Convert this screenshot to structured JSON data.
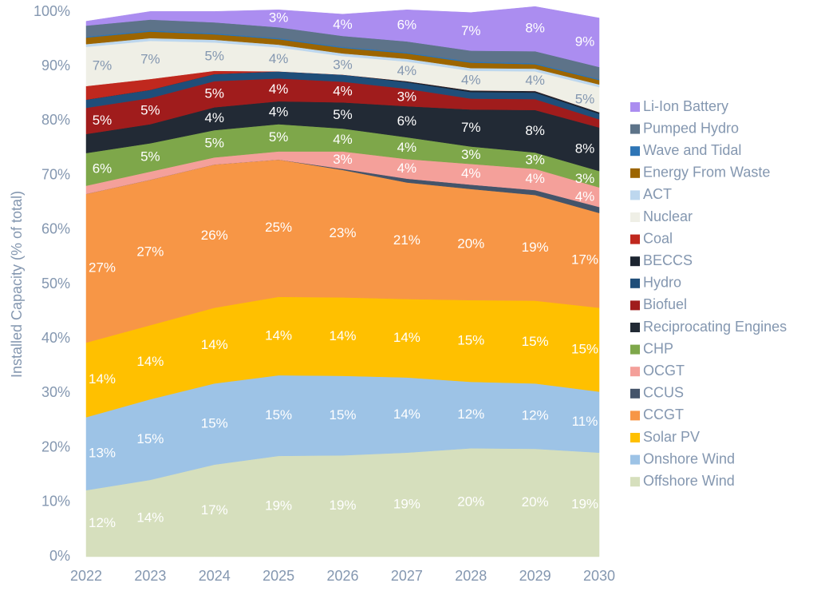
{
  "chart_data": {
    "type": "stacked-area",
    "y_label": "Installed Capacity (% of total)",
    "categories": [
      "2022",
      "2023",
      "2024",
      "2025",
      "2026",
      "2027",
      "2028",
      "2029",
      "2030"
    ],
    "ylim": [
      0,
      100
    ],
    "yticks": [
      {
        "value": 0,
        "label": "0%"
      },
      {
        "value": 10,
        "label": "10%"
      },
      {
        "value": 20,
        "label": "20%"
      },
      {
        "value": 30,
        "label": "30%"
      },
      {
        "value": 40,
        "label": "40%"
      },
      {
        "value": 50,
        "label": "50%"
      },
      {
        "value": 60,
        "label": "60%"
      },
      {
        "value": 70,
        "label": "70%"
      },
      {
        "value": 80,
        "label": "80%"
      },
      {
        "value": 90,
        "label": "90%"
      },
      {
        "value": 100,
        "label": "100%"
      }
    ],
    "legend": "right",
    "series": [
      {
        "name": "Offshore Wind",
        "color": "#d6dfbd",
        "values": [
          12.2,
          14.1,
          16.9,
          18.5,
          18.6,
          19.1,
          19.9,
          19.8,
          19.1
        ],
        "value_labels": [
          "12%",
          "14%",
          "17%",
          "19%",
          "19%",
          "19%",
          "20%",
          "20%",
          "19%"
        ]
      },
      {
        "name": "Onshore Wind",
        "color": "#9dc3e6",
        "values": [
          13.4,
          14.8,
          14.9,
          14.8,
          14.6,
          13.8,
          12.2,
          12.0,
          11.2
        ],
        "value_labels": [
          "13%",
          "15%",
          "15%",
          "15%",
          "15%",
          "14%",
          "12%",
          "12%",
          "11%"
        ]
      },
      {
        "name": "Solar PV",
        "color": "#ffc000",
        "values": [
          13.7,
          13.6,
          13.9,
          14.4,
          14.4,
          14.4,
          15.0,
          15.2,
          15.4
        ],
        "value_labels": [
          "14%",
          "14%",
          "14%",
          "14%",
          "14%",
          "14%",
          "15%",
          "15%",
          "15%"
        ]
      },
      {
        "name": "CCGT",
        "color": "#f79646",
        "values": [
          27.3,
          26.7,
          26.3,
          25.2,
          23.4,
          21.4,
          20.4,
          19.4,
          17.4
        ],
        "value_labels": [
          "27%",
          "27%",
          "26%",
          "25%",
          "23%",
          "21%",
          "20%",
          "19%",
          "17%"
        ]
      },
      {
        "name": "CCUS",
        "color": "#44546a",
        "values": [
          0,
          0,
          0,
          0,
          0.2,
          0.7,
          0.8,
          0.9,
          1.1
        ]
      },
      {
        "name": "OCGT",
        "color": "#f4a09a",
        "values": [
          1.5,
          1.5,
          1.3,
          1.5,
          3.2,
          3.6,
          3.8,
          3.9,
          3.6
        ],
        "value_labels": [
          null,
          null,
          null,
          null,
          "3%",
          "4%",
          "4%",
          "4%",
          "4%"
        ]
      },
      {
        "name": "CHP",
        "color": "#7ea74a",
        "values": [
          6.0,
          5.2,
          5.0,
          5.0,
          4.2,
          4.0,
          3.2,
          3.0,
          3.0
        ],
        "value_labels": [
          "6%",
          "5%",
          "5%",
          "5%",
          "4%",
          "4%",
          "3%",
          "3%",
          "3%"
        ]
      },
      {
        "name": "Reciprocating Engines",
        "color": "#222a35",
        "values": [
          3.5,
          3.5,
          4.2,
          4.2,
          4.8,
          5.7,
          6.8,
          7.8,
          8.0
        ],
        "value_labels": [
          null,
          null,
          "4%",
          "4%",
          "5%",
          "6%",
          "7%",
          "8%",
          "8%"
        ]
      },
      {
        "name": "Biofuel",
        "color": "#a01c1c",
        "values": [
          4.8,
          4.8,
          4.8,
          4.2,
          3.8,
          3.2,
          2.0,
          2.0,
          1.5
        ],
        "value_labels": [
          "5%",
          "5%",
          "5%",
          "4%",
          "4%",
          "3%",
          null,
          null,
          null
        ]
      },
      {
        "name": "Hydro",
        "color": "#1f4e79",
        "values": [
          1.5,
          1.5,
          1.3,
          1.3,
          1.3,
          1.2,
          1.2,
          1.2,
          1.0
        ]
      },
      {
        "name": "BECCS",
        "color": "#1c2430",
        "values": [
          0,
          0,
          0,
          0,
          0,
          0.2,
          0.3,
          0.3,
          0.3
        ]
      },
      {
        "name": "Coal",
        "color": "#c0281e",
        "values": [
          2.5,
          2.0,
          0.6,
          0,
          0,
          0,
          0,
          0,
          0
        ]
      },
      {
        "name": "Nuclear",
        "color": "#efefe6",
        "values": [
          7.2,
          7.0,
          5.2,
          4.4,
          3.4,
          3.6,
          3.6,
          3.6,
          4.6
        ],
        "value_labels": [
          "7%",
          "7%",
          "5%",
          "4%",
          "3%",
          "4%",
          "4%",
          "4%",
          "5%"
        ]
      },
      {
        "name": "ACT",
        "color": "#bdd7ee",
        "values": [
          0.5,
          0.5,
          0.5,
          0.5,
          0.5,
          0.5,
          0.5,
          0.5,
          0.5
        ]
      },
      {
        "name": "Energy From Waste",
        "color": "#9c6500",
        "values": [
          1.2,
          1.2,
          1.0,
          1.0,
          1.0,
          1.0,
          1.0,
          0.8,
          0.8
        ]
      },
      {
        "name": "Wave and Tidal",
        "color": "#2e75b6",
        "values": [
          0.2,
          0.2,
          0.2,
          0.2,
          0.2,
          0.2,
          0.2,
          0.2,
          0.2
        ]
      },
      {
        "name": "Pumped Hydro",
        "color": "#5d7389",
        "values": [
          2.0,
          2.0,
          2.0,
          2.0,
          2.0,
          2.0,
          2.0,
          2.2,
          2.2
        ]
      },
      {
        "name": "Li-Ion Battery",
        "color": "#ab8df0",
        "values": [
          0.8,
          1.5,
          2.0,
          3.2,
          4.0,
          5.8,
          7.0,
          8.2,
          9.0
        ],
        "value_labels": [
          null,
          null,
          null,
          "3%",
          "4%",
          "6%",
          "7%",
          "8%",
          "9%"
        ]
      }
    ]
  }
}
